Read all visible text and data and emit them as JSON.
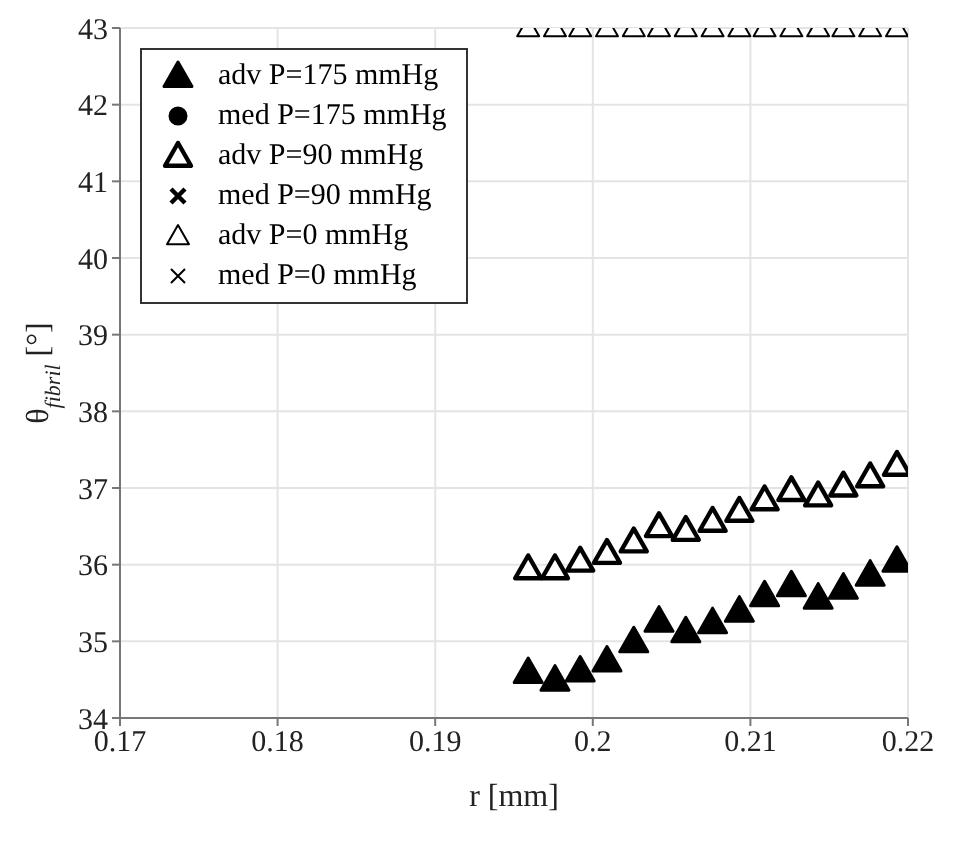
{
  "chart_data": {
    "type": "scatter",
    "xlabel": "r [mm]",
    "ylabel": "θ$_{fibril}$ [°]",
    "x": [
      0.1959,
      0.1976,
      0.1992,
      0.2009,
      0.2026,
      0.2042,
      0.2059,
      0.2076,
      0.2093,
      0.2109,
      0.2126,
      0.2143,
      0.2159,
      0.2176,
      0.2193
    ],
    "series": [
      {
        "name": "adv P=175 mmHg",
        "color": "#000000",
        "marker": "triangle",
        "values": [
          34.6,
          34.5,
          34.62,
          34.75,
          35.0,
          35.27,
          35.13,
          35.25,
          35.4,
          35.6,
          35.73,
          35.57,
          35.7,
          35.87,
          36.05
        ]
      },
      {
        "name": "med P=175 mmHg",
        "color": "#000000",
        "marker": "circle",
        "values": [
          null,
          null,
          null,
          null,
          null,
          null,
          null,
          null,
          null,
          null,
          null,
          null,
          null,
          null,
          null
        ]
      },
      {
        "name": "adv P=90 mmHg",
        "color": "#000000",
        "marker": "triangle",
        "values": [
          35.95,
          35.95,
          36.05,
          36.15,
          36.3,
          36.5,
          36.45,
          36.57,
          36.7,
          36.85,
          36.97,
          36.9,
          37.03,
          37.15,
          37.3
        ]
      },
      {
        "name": "med P=90 mmHg",
        "color": "#000000",
        "marker": "cross",
        "values": [
          null,
          null,
          null,
          null,
          null,
          null,
          null,
          null,
          null,
          null,
          null,
          null,
          null,
          null,
          null
        ]
      },
      {
        "name": "adv P=0 mmHg",
        "color": "#000000",
        "marker": "triangle",
        "values": [
          43,
          43,
          43,
          43,
          43,
          43,
          43,
          43,
          43,
          43,
          43,
          43,
          43,
          43,
          43
        ]
      },
      {
        "name": "med P=0 mmHg",
        "color": "#000000",
        "marker": "cross",
        "values": [
          null,
          null,
          null,
          null,
          null,
          null,
          null,
          null,
          null,
          null,
          null,
          null,
          null,
          null,
          null
        ]
      }
    ],
    "xlim": [
      0.17,
      0.22
    ],
    "xticks": [
      0.17,
      0.18,
      0.19,
      0.2,
      0.21,
      0.22
    ],
    "ylim": [
      34,
      43
    ],
    "yticks": [
      34,
      35,
      36,
      37,
      38,
      39,
      40,
      41,
      42,
      43
    ],
    "grid": true,
    "legend": "top left"
  }
}
